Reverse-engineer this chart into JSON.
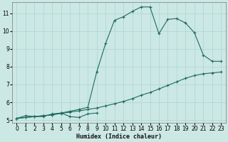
{
  "xlabel": "Humidex (Indice chaleur)",
  "bg_color": "#cce8e4",
  "grid_color": "#aad4d0",
  "line_color": "#1e6b60",
  "xlim": [
    -0.5,
    23.5
  ],
  "ylim": [
    4.85,
    11.6
  ],
  "xticks": [
    0,
    1,
    2,
    3,
    4,
    5,
    6,
    7,
    8,
    9,
    10,
    11,
    12,
    13,
    14,
    15,
    16,
    17,
    18,
    19,
    20,
    21,
    22,
    23
  ],
  "yticks": [
    5,
    6,
    7,
    8,
    9,
    10,
    11
  ],
  "line1_x": [
    0,
    1,
    2,
    3,
    4,
    5,
    6,
    7,
    8,
    9
  ],
  "line1_y": [
    5.1,
    5.25,
    5.2,
    5.2,
    5.35,
    5.4,
    5.2,
    5.15,
    5.35,
    5.4
  ],
  "line2_x": [
    0,
    1,
    2,
    3,
    4,
    5,
    6,
    7,
    8,
    9,
    10,
    11,
    12,
    13,
    14,
    15,
    16,
    17,
    18,
    19,
    20,
    21,
    22,
    23
  ],
  "line2_y": [
    5.1,
    5.15,
    5.2,
    5.25,
    5.3,
    5.38,
    5.45,
    5.52,
    5.6,
    5.68,
    5.8,
    5.92,
    6.05,
    6.2,
    6.4,
    6.55,
    6.75,
    6.95,
    7.15,
    7.35,
    7.5,
    7.6,
    7.65,
    7.7
  ],
  "line3_x": [
    0,
    1,
    2,
    3,
    4,
    5,
    6,
    7,
    8,
    9,
    10,
    11,
    12,
    13,
    14,
    15,
    16,
    17,
    18,
    19,
    20,
    21,
    22,
    23
  ],
  "line3_y": [
    5.1,
    5.15,
    5.2,
    5.25,
    5.3,
    5.4,
    5.5,
    5.6,
    5.72,
    7.7,
    9.3,
    10.6,
    10.8,
    11.1,
    11.35,
    11.35,
    9.85,
    10.65,
    10.7,
    10.45,
    9.9,
    8.65,
    8.3,
    8.3
  ]
}
